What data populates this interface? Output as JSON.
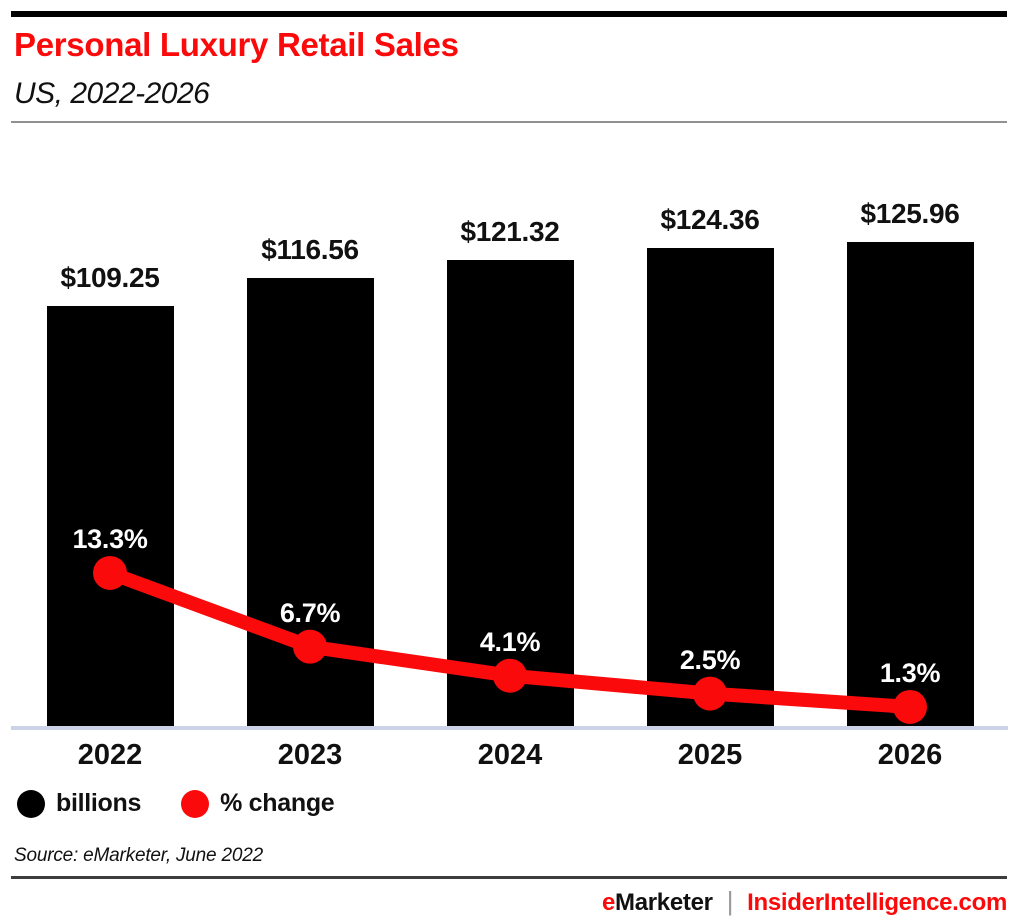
{
  "header": {
    "title": "Personal Luxury Retail Sales",
    "subtitle": "US, 2022-2026"
  },
  "chart_data": {
    "type": "bar",
    "title": "Personal Luxury Retail Sales",
    "subtitle": "US, 2022-2026",
    "categories": [
      "2022",
      "2023",
      "2024",
      "2025",
      "2026"
    ],
    "series": [
      {
        "name": "billions",
        "type": "bar",
        "unit": "US$ billions",
        "values": [
          109.25,
          116.56,
          121.32,
          124.36,
          125.96
        ],
        "labels": [
          "$109.25",
          "$116.56",
          "$121.32",
          "$124.36",
          "$125.96"
        ],
        "color": "#000000"
      },
      {
        "name": "% change",
        "type": "line",
        "unit": "percent",
        "values": [
          13.3,
          6.7,
          4.1,
          2.5,
          1.3
        ],
        "labels": [
          "13.3%",
          "6.7%",
          "4.1%",
          "2.5%",
          "1.3%"
        ],
        "color": "#fa0a0a"
      }
    ],
    "legend": [
      {
        "label": "billions",
        "color": "#000000"
      },
      {
        "label": "% change",
        "color": "#fa0a0a"
      }
    ],
    "legend_position": "bottom-left",
    "grid": false,
    "xlabel": "",
    "ylabel": ""
  },
  "source": {
    "text": "Source: eMarketer, June 2022"
  },
  "footer": {
    "brand_e": "e",
    "brand_rest": "Marketer",
    "separator": "|",
    "site": "InsiderIntelligence.com"
  },
  "colors": {
    "accent_red": "#fa0a0a",
    "bar_black": "#000000",
    "axis_line": "#ccd3e6",
    "header_rule": "#919191",
    "footer_rule": "#3d3d3d"
  }
}
